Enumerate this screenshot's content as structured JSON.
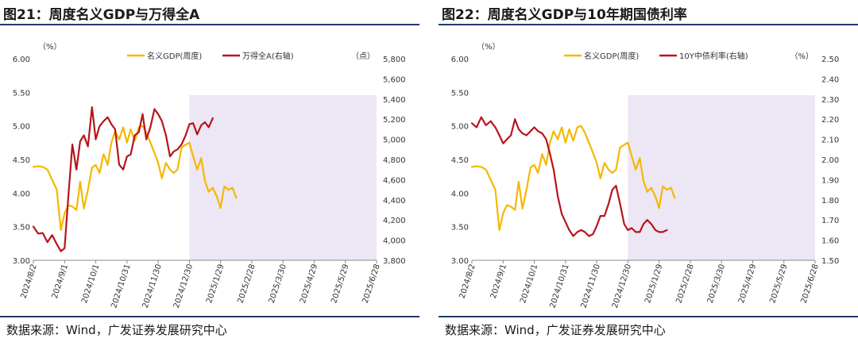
{
  "chart_data": [
    {
      "type": "line",
      "title": "图21：周度名义GDP与万得全A",
      "source": "数据来源：Wind，广发证券发展研究中心",
      "left_unit": "（%）",
      "right_unit": "（点）",
      "left_axis": {
        "min": 3.0,
        "max": 6.0,
        "ticks": [
          "3.00",
          "3.50",
          "4.00",
          "4.50",
          "5.00",
          "5.50",
          "6.00"
        ]
      },
      "right_axis": {
        "min": 3800,
        "max": 5800,
        "ticks": [
          "3,800",
          "4,000",
          "4,200",
          "4,400",
          "4,600",
          "4,800",
          "5,000",
          "5,200",
          "5,400",
          "5,600",
          "5,800"
        ]
      },
      "x_ticks": [
        "2024/8/2",
        "2024/9/1",
        "2024/10/1",
        "2024/10/31",
        "2024/11/30",
        "2024/12/30",
        "2025/1/29",
        "2025/2/28",
        "2025/3/30",
        "2025/4/29",
        "2025/5/29",
        "2025/6/28"
      ],
      "shade_from_index": 5,
      "series": [
        {
          "name": "名义GDP(周度)",
          "axis": "left",
          "color": "#f5b800",
          "points": [
            [
              0,
              4.39
            ],
            [
              0.15,
              4.4
            ],
            [
              0.3,
              4.39
            ],
            [
              0.45,
              4.35
            ],
            [
              0.6,
              4.2
            ],
            [
              0.75,
              4.05
            ],
            [
              0.88,
              3.45
            ],
            [
              1.0,
              3.7
            ],
            [
              1.12,
              3.82
            ],
            [
              1.25,
              3.8
            ],
            [
              1.38,
              3.75
            ],
            [
              1.5,
              4.17
            ],
            [
              1.62,
              3.77
            ],
            [
              1.75,
              4.05
            ],
            [
              1.88,
              4.38
            ],
            [
              2.0,
              4.42
            ],
            [
              2.12,
              4.3
            ],
            [
              2.25,
              4.58
            ],
            [
              2.38,
              4.42
            ],
            [
              2.5,
              4.75
            ],
            [
              2.62,
              4.92
            ],
            [
              2.75,
              4.8
            ],
            [
              2.88,
              4.98
            ],
            [
              3.0,
              4.75
            ],
            [
              3.12,
              4.95
            ],
            [
              3.25,
              4.78
            ],
            [
              3.38,
              4.98
            ],
            [
              3.5,
              5.0
            ],
            [
              3.62,
              4.9
            ],
            [
              3.75,
              4.75
            ],
            [
              3.88,
              4.6
            ],
            [
              4.0,
              4.45
            ],
            [
              4.12,
              4.22
            ],
            [
              4.25,
              4.45
            ],
            [
              4.38,
              4.35
            ],
            [
              4.5,
              4.3
            ],
            [
              4.62,
              4.35
            ],
            [
              4.75,
              4.68
            ],
            [
              4.88,
              4.72
            ],
            [
              5.0,
              4.75
            ],
            [
              5.12,
              4.55
            ],
            [
              5.25,
              4.35
            ],
            [
              5.38,
              4.52
            ],
            [
              5.5,
              4.18
            ],
            [
              5.62,
              4.02
            ],
            [
              5.75,
              4.08
            ],
            [
              5.88,
              3.95
            ],
            [
              6.0,
              3.78
            ],
            [
              6.12,
              4.1
            ],
            [
              6.25,
              4.05
            ],
            [
              6.38,
              4.08
            ],
            [
              6.5,
              3.93
            ]
          ]
        },
        {
          "name": "万得全A(右轴)",
          "axis": "right",
          "color": "#b8141c",
          "points": [
            [
              0,
              4135
            ],
            [
              0.15,
              4065
            ],
            [
              0.3,
              4070
            ],
            [
              0.45,
              3980
            ],
            [
              0.6,
              4050
            ],
            [
              0.75,
              3960
            ],
            [
              0.88,
              3890
            ],
            [
              1.0,
              3920
            ],
            [
              1.12,
              4430
            ],
            [
              1.25,
              4950
            ],
            [
              1.38,
              4700
            ],
            [
              1.5,
              4980
            ],
            [
              1.62,
              5040
            ],
            [
              1.75,
              4930
            ],
            [
              1.88,
              5320
            ],
            [
              2.0,
              5000
            ],
            [
              2.12,
              5130
            ],
            [
              2.25,
              5180
            ],
            [
              2.38,
              5220
            ],
            [
              2.5,
              5150
            ],
            [
              2.62,
              5100
            ],
            [
              2.75,
              4750
            ],
            [
              2.88,
              4700
            ],
            [
              3.0,
              4830
            ],
            [
              3.12,
              4850
            ],
            [
              3.25,
              5040
            ],
            [
              3.38,
              5070
            ],
            [
              3.5,
              5250
            ],
            [
              3.62,
              5000
            ],
            [
              3.75,
              5120
            ],
            [
              3.88,
              5300
            ],
            [
              4.0,
              5250
            ],
            [
              4.12,
              5180
            ],
            [
              4.25,
              5040
            ],
            [
              4.38,
              4830
            ],
            [
              4.5,
              4880
            ],
            [
              4.62,
              4900
            ],
            [
              4.75,
              4950
            ],
            [
              4.88,
              5040
            ],
            [
              5.0,
              5150
            ],
            [
              5.12,
              5160
            ],
            [
              5.25,
              5050
            ],
            [
              5.38,
              5140
            ],
            [
              5.5,
              5170
            ],
            [
              5.62,
              5120
            ],
            [
              5.75,
              5210
            ]
          ]
        }
      ]
    },
    {
      "type": "line",
      "title": "图22：周度名义GDP与10年期国债利率",
      "source": "数据来源：Wind，广发证券发展研究中心",
      "left_unit": "（%）",
      "right_unit": "（%）",
      "left_axis": {
        "min": 3.0,
        "max": 6.0,
        "ticks": [
          "3.00",
          "3.50",
          "4.00",
          "4.50",
          "5.00",
          "5.50",
          "6.00"
        ]
      },
      "right_axis": {
        "min": 1.5,
        "max": 2.5,
        "ticks": [
          "1.50",
          "1.60",
          "1.70",
          "1.80",
          "1.90",
          "2.00",
          "2.10",
          "2.20",
          "2.30",
          "2.40",
          "2.50"
        ]
      },
      "x_ticks": [
        "2024/8/2",
        "2024/9/1",
        "2024/10/1",
        "2024/10/31",
        "2024/11/30",
        "2024/12/30",
        "2025/1/29",
        "2025/2/28",
        "2025/3/30",
        "2025/4/29",
        "2025/5/29",
        "2025/6/28"
      ],
      "shade_from_index": 5,
      "series": [
        {
          "name": "名义GDP(周度)",
          "axis": "left",
          "color": "#f5b800",
          "points": [
            [
              0,
              4.39
            ],
            [
              0.15,
              4.4
            ],
            [
              0.3,
              4.39
            ],
            [
              0.45,
              4.35
            ],
            [
              0.6,
              4.2
            ],
            [
              0.75,
              4.05
            ],
            [
              0.88,
              3.45
            ],
            [
              1.0,
              3.7
            ],
            [
              1.12,
              3.82
            ],
            [
              1.25,
              3.8
            ],
            [
              1.38,
              3.75
            ],
            [
              1.5,
              4.17
            ],
            [
              1.62,
              3.77
            ],
            [
              1.75,
              4.05
            ],
            [
              1.88,
              4.38
            ],
            [
              2.0,
              4.42
            ],
            [
              2.12,
              4.3
            ],
            [
              2.25,
              4.58
            ],
            [
              2.38,
              4.42
            ],
            [
              2.5,
              4.75
            ],
            [
              2.62,
              4.92
            ],
            [
              2.75,
              4.8
            ],
            [
              2.88,
              4.98
            ],
            [
              3.0,
              4.75
            ],
            [
              3.12,
              4.95
            ],
            [
              3.25,
              4.78
            ],
            [
              3.38,
              4.98
            ],
            [
              3.5,
              5.0
            ],
            [
              3.62,
              4.9
            ],
            [
              3.75,
              4.75
            ],
            [
              3.88,
              4.6
            ],
            [
              4.0,
              4.45
            ],
            [
              4.12,
              4.22
            ],
            [
              4.25,
              4.45
            ],
            [
              4.38,
              4.35
            ],
            [
              4.5,
              4.3
            ],
            [
              4.62,
              4.35
            ],
            [
              4.75,
              4.68
            ],
            [
              4.88,
              4.72
            ],
            [
              5.0,
              4.75
            ],
            [
              5.12,
              4.55
            ],
            [
              5.25,
              4.35
            ],
            [
              5.38,
              4.52
            ],
            [
              5.5,
              4.18
            ],
            [
              5.62,
              4.02
            ],
            [
              5.75,
              4.08
            ],
            [
              5.88,
              3.95
            ],
            [
              6.0,
              3.78
            ],
            [
              6.12,
              4.1
            ],
            [
              6.25,
              4.05
            ],
            [
              6.38,
              4.08
            ],
            [
              6.5,
              3.93
            ]
          ]
        },
        {
          "name": "10Y中债利率(右轴)",
          "axis": "right",
          "color": "#b8141c",
          "points": [
            [
              0,
              2.18
            ],
            [
              0.15,
              2.16
            ],
            [
              0.3,
              2.21
            ],
            [
              0.45,
              2.17
            ],
            [
              0.6,
              2.19
            ],
            [
              0.75,
              2.16
            ],
            [
              0.88,
              2.12
            ],
            [
              1.0,
              2.08
            ],
            [
              1.12,
              2.1
            ],
            [
              1.25,
              2.12
            ],
            [
              1.38,
              2.2
            ],
            [
              1.5,
              2.15
            ],
            [
              1.62,
              2.13
            ],
            [
              1.75,
              2.12
            ],
            [
              1.88,
              2.14
            ],
            [
              2.0,
              2.16
            ],
            [
              2.12,
              2.14
            ],
            [
              2.25,
              2.13
            ],
            [
              2.38,
              2.1
            ],
            [
              2.5,
              2.03
            ],
            [
              2.62,
              1.95
            ],
            [
              2.75,
              1.82
            ],
            [
              2.88,
              1.73
            ],
            [
              3.0,
              1.69
            ],
            [
              3.12,
              1.65
            ],
            [
              3.25,
              1.62
            ],
            [
              3.38,
              1.64
            ],
            [
              3.5,
              1.65
            ],
            [
              3.62,
              1.64
            ],
            [
              3.75,
              1.62
            ],
            [
              3.88,
              1.63
            ],
            [
              4.0,
              1.67
            ],
            [
              4.12,
              1.72
            ],
            [
              4.25,
              1.72
            ],
            [
              4.38,
              1.78
            ],
            [
              4.5,
              1.85
            ],
            [
              4.62,
              1.87
            ],
            [
              4.75,
              1.78
            ],
            [
              4.88,
              1.68
            ],
            [
              5.0,
              1.65
            ],
            [
              5.12,
              1.66
            ],
            [
              5.25,
              1.64
            ],
            [
              5.38,
              1.64
            ],
            [
              5.5,
              1.68
            ],
            [
              5.62,
              1.7
            ],
            [
              5.75,
              1.68
            ],
            [
              5.88,
              1.65
            ],
            [
              6.0,
              1.64
            ],
            [
              6.12,
              1.64
            ],
            [
              6.25,
              1.65
            ]
          ]
        }
      ]
    }
  ]
}
